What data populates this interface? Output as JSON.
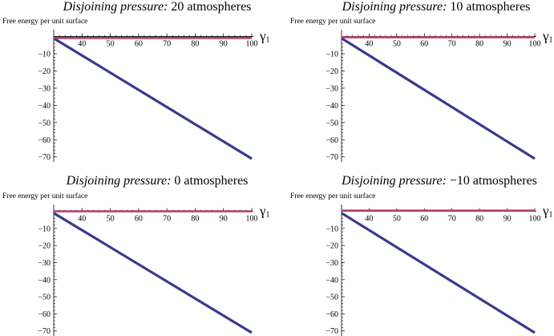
{
  "chart_data": [
    {
      "type": "line",
      "title_label": "Disjoining pressure:",
      "title_value": "20 atmospheres",
      "ylabel": "Free energy per unit surface",
      "xlabel": "γ1",
      "xticks": [
        40,
        50,
        60,
        70,
        80,
        90,
        100
      ],
      "yticks": [
        -10,
        -20,
        -30,
        -40,
        -50,
        -60,
        -70
      ],
      "xlim": [
        30,
        100
      ],
      "ylim": [
        -72,
        4
      ],
      "series": [
        {
          "x": [
            30,
            100
          ],
          "y": [
            -1,
            -71
          ],
          "color": "#3a3a8c"
        },
        {
          "x": [
            30,
            100
          ],
          "y": [
            -0.8,
            -0.8
          ],
          "color": "#b03a6a"
        }
      ]
    },
    {
      "type": "line",
      "title_label": "Disjoining pressure:",
      "title_value": "10 atmospheres",
      "ylabel": "Free energy per unit surface",
      "xlabel": "γ1",
      "xticks": [
        40,
        50,
        60,
        70,
        80,
        90,
        100
      ],
      "yticks": [
        -10,
        -20,
        -30,
        -40,
        -50,
        -60,
        -70
      ],
      "xlim": [
        30,
        100
      ],
      "ylim": [
        -72,
        4
      ],
      "series": [
        {
          "x": [
            30,
            100
          ],
          "y": [
            -1,
            -71
          ],
          "color": "#3a3a8c"
        },
        {
          "x": [
            30,
            100
          ],
          "y": [
            -0.4,
            -0.4
          ],
          "color": "#b03a6a"
        }
      ]
    },
    {
      "type": "line",
      "title_label": "Disjoining pressure:",
      "title_value": "0 atmospheres",
      "ylabel": "Free energy per unit surface",
      "xlabel": "γ1",
      "xticks": [
        40,
        50,
        60,
        70,
        80,
        90,
        100
      ],
      "yticks": [
        -10,
        -20,
        -30,
        -40,
        -50,
        -60,
        -70
      ],
      "xlim": [
        30,
        100
      ],
      "ylim": [
        -72,
        4
      ],
      "series": [
        {
          "x": [
            30,
            100
          ],
          "y": [
            -1,
            -71
          ],
          "color": "#3a3a8c"
        },
        {
          "x": [
            30,
            100
          ],
          "y": [
            0,
            0
          ],
          "color": "#b03a6a"
        }
      ]
    },
    {
      "type": "line",
      "title_label": "Disjoining pressure:",
      "title_value": "−10 atmospheres",
      "ylabel": "Free energy per unit surface",
      "xlabel": "γ1",
      "xticks": [
        40,
        50,
        60,
        70,
        80,
        90,
        100
      ],
      "yticks": [
        -10,
        -20,
        -30,
        -40,
        -50,
        -60,
        -70
      ],
      "xlim": [
        30,
        100
      ],
      "ylim": [
        -72,
        4
      ],
      "series": [
        {
          "x": [
            30,
            100
          ],
          "y": [
            -1,
            -71
          ],
          "color": "#3a3a8c"
        },
        {
          "x": [
            30,
            100
          ],
          "y": [
            0.4,
            0.4
          ],
          "color": "#b03a6a"
        }
      ]
    }
  ]
}
